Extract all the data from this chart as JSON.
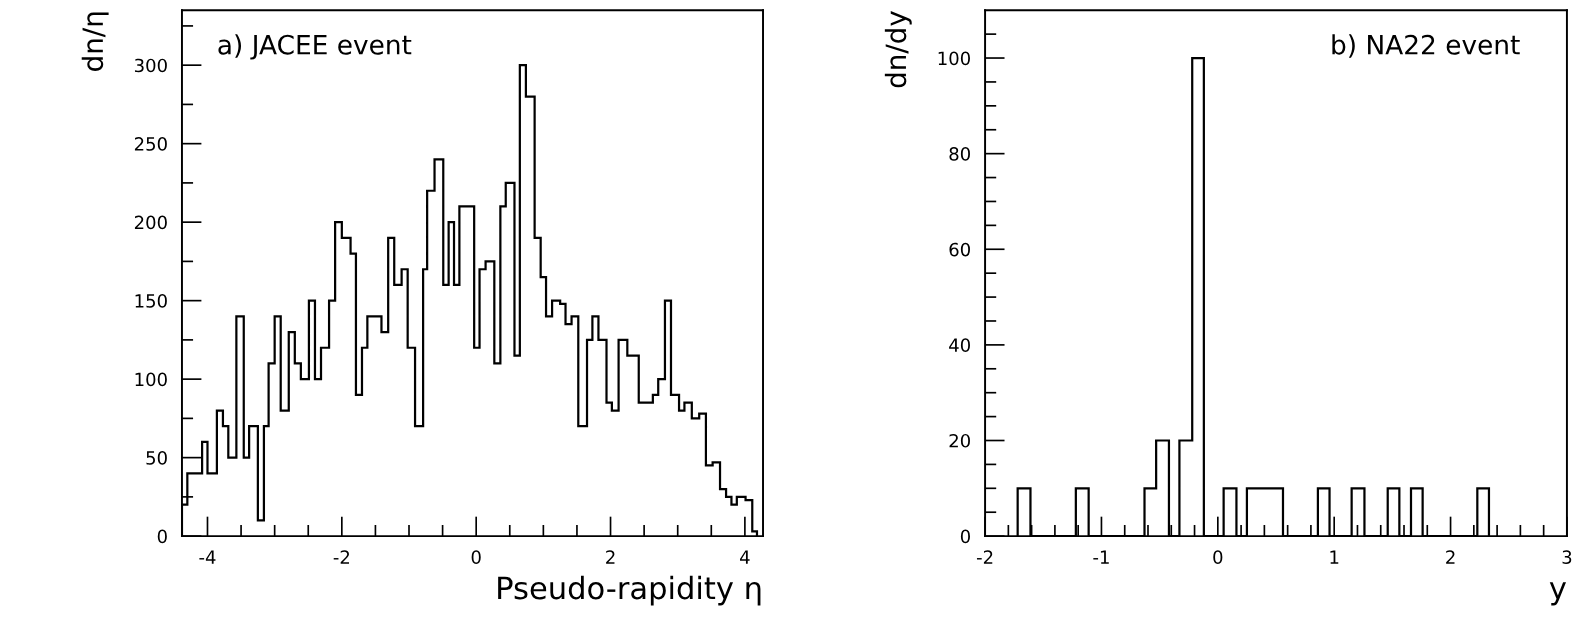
{
  "chart_data": [
    {
      "type": "histogram",
      "xlabel": "Pseudo-rapidity η",
      "ylabel": "dn/η",
      "annotations": [
        "a) JACEE event"
      ],
      "bins": [
        -4.38,
        -4.3,
        -4.08,
        -4.0,
        -3.86,
        -3.77,
        -3.69,
        -3.57,
        -3.46,
        -3.38,
        -3.25,
        -3.16,
        -3.09,
        -3.0,
        -2.91,
        -2.79,
        -2.7,
        -2.61,
        -2.49,
        -2.4,
        -2.31,
        -2.19,
        -2.1,
        -2.0,
        -1.87,
        -1.79,
        -1.7,
        -1.62,
        -1.41,
        -1.31,
        -1.22,
        -1.11,
        -1.02,
        -0.91,
        -0.79,
        -0.73,
        -0.62,
        -0.49,
        -0.41,
        -0.33,
        -0.25,
        -0.03,
        0.05,
        0.14,
        0.27,
        0.36,
        0.44,
        0.57,
        0.65,
        0.74,
        0.87,
        0.96,
        1.04,
        1.13,
        1.25,
        1.33,
        1.42,
        1.52,
        1.65,
        1.73,
        1.82,
        1.94,
        2.02,
        2.12,
        2.25,
        2.42,
        2.63,
        2.71,
        2.81,
        2.9,
        3.02,
        3.1,
        3.21,
        3.32,
        3.42,
        3.52,
        3.63,
        3.72,
        3.8,
        3.88,
        4.01,
        4.11,
        4.18
      ],
      "values": [
        20,
        40,
        60,
        40,
        80,
        70,
        50,
        140,
        50,
        70,
        10,
        70,
        110,
        140,
        80,
        130,
        110,
        100,
        150,
        100,
        120,
        150,
        200,
        190,
        180,
        90,
        120,
        140,
        130,
        190,
        160,
        170,
        120,
        70,
        170,
        220,
        240,
        160,
        200,
        160,
        210,
        120,
        170,
        175,
        110,
        210,
        225,
        115,
        300,
        280,
        190,
        165,
        140,
        150,
        148,
        135,
        140,
        70,
        125,
        140,
        125,
        85,
        80,
        125,
        115,
        85,
        90,
        100,
        150,
        90,
        80,
        85,
        75,
        78,
        45,
        47,
        30,
        25,
        20,
        25,
        23,
        3
      ],
      "color": "#000000",
      "xlim": [
        -4.38,
        4.27
      ],
      "xticks": [
        -4,
        {
          "value": -3.5,
          "label": null
        },
        {
          "value": -3,
          "label": null
        },
        {
          "value": -2.5,
          "label": null
        },
        -2,
        {
          "value": -1.5,
          "label": null
        },
        {
          "value": -1,
          "label": null
        },
        {
          "value": -0.5,
          "label": null
        },
        0,
        {
          "value": 0.5,
          "label": null
        },
        {
          "value": 1,
          "label": null
        },
        {
          "value": 1.5,
          "label": null
        },
        2,
        {
          "value": 2.5,
          "label": null
        },
        {
          "value": 3,
          "label": null
        },
        {
          "value": 3.5,
          "label": null
        },
        4
      ],
      "ylim": [
        0,
        335
      ],
      "yticks": [
        0,
        {
          "value": 25,
          "label": null
        },
        50,
        {
          "value": 75,
          "label": null
        },
        100,
        {
          "value": 125,
          "label": null
        },
        150,
        {
          "value": 175,
          "label": null
        },
        200,
        {
          "value": 225,
          "label": null
        },
        250,
        {
          "value": 275,
          "label": null
        },
        300,
        {
          "value": 325,
          "label": null
        }
      ]
    },
    {
      "type": "histogram",
      "xlabel": "y",
      "ylabel": "dn/dy",
      "annotations": [
        "b) NA22 event"
      ],
      "bins": [
        -1.72,
        -1.61,
        -1.22,
        -1.11,
        -0.63,
        -0.53,
        -0.42,
        -0.33,
        -0.22,
        -0.12,
        0.05,
        0.16,
        0.25,
        0.56,
        0.86,
        0.96,
        1.15,
        1.26,
        1.46,
        1.56,
        1.66,
        1.76,
        2.23,
        2.33
      ],
      "values": [
        10,
        0,
        10,
        0,
        10,
        20,
        0,
        20,
        100,
        0,
        10,
        0,
        10,
        0,
        10,
        0,
        10,
        0,
        10,
        0,
        10,
        0,
        10
      ],
      "color": "#000000",
      "xlim": [
        -2,
        3
      ],
      "xticks": [
        -2,
        {
          "value": -1.8,
          "label": null
        },
        {
          "value": -1.6,
          "label": null
        },
        {
          "value": -1.4,
          "label": null
        },
        {
          "value": -1.2,
          "label": null
        },
        -1,
        {
          "value": -0.8,
          "label": null
        },
        {
          "value": -0.6,
          "label": null
        },
        {
          "value": -0.4,
          "label": null
        },
        {
          "value": -0.2,
          "label": null
        },
        0,
        {
          "value": 0.2,
          "label": null
        },
        {
          "value": 0.4,
          "label": null
        },
        {
          "value": 0.6,
          "label": null
        },
        {
          "value": 0.8,
          "label": null
        },
        1,
        {
          "value": 1.2,
          "label": null
        },
        {
          "value": 1.4,
          "label": null
        },
        {
          "value": 1.6,
          "label": null
        },
        {
          "value": 1.8,
          "label": null
        },
        2,
        {
          "value": 2.2,
          "label": null
        },
        {
          "value": 2.4,
          "label": null
        },
        {
          "value": 2.6,
          "label": null
        },
        {
          "value": 2.8,
          "label": null
        },
        3
      ],
      "ylim": [
        0,
        110
      ],
      "yticks": [
        0,
        {
          "value": 5,
          "label": null
        },
        {
          "value": 10,
          "label": null
        },
        {
          "value": 15,
          "label": null
        },
        20,
        {
          "value": 25,
          "label": null
        },
        {
          "value": 30,
          "label": null
        },
        {
          "value": 35,
          "label": null
        },
        40,
        {
          "value": 45,
          "label": null
        },
        {
          "value": 50,
          "label": null
        },
        {
          "value": 55,
          "label": null
        },
        60,
        {
          "value": 65,
          "label": null
        },
        {
          "value": 70,
          "label": null
        },
        {
          "value": 75,
          "label": null
        },
        80,
        {
          "value": 85,
          "label": null
        },
        {
          "value": 90,
          "label": null
        },
        {
          "value": 95,
          "label": null
        },
        100,
        {
          "value": 105,
          "label": null
        }
      ]
    }
  ]
}
